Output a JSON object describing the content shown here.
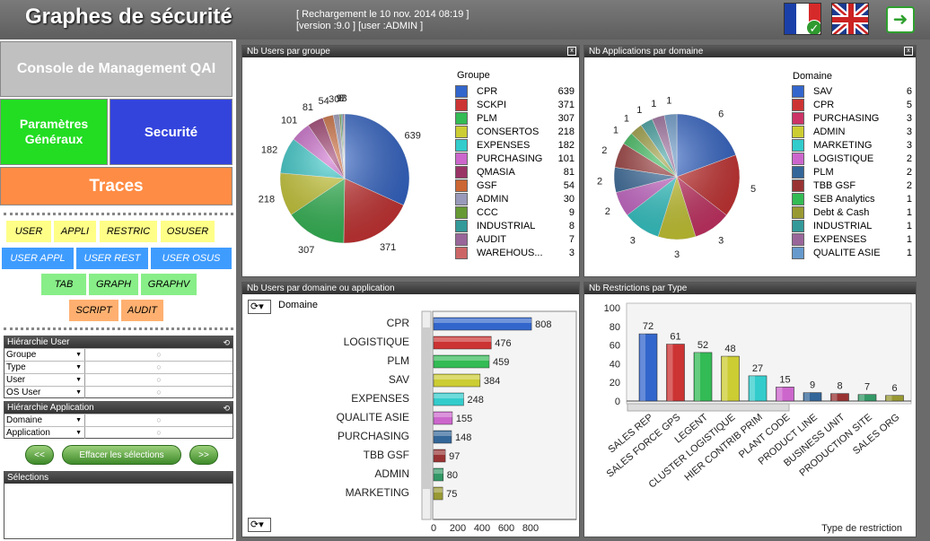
{
  "header": {
    "title": "Graphes de sécurité",
    "reload": "[ Rechargement le 10 nov. 2014 08:19 ]",
    "version": "[version :9.0 ]  [user :ADMIN ]"
  },
  "nav": {
    "console": "Console de Management QAI",
    "params": "Paramètres Généraux",
    "securite": "Securité",
    "traces": "Traces"
  },
  "tabs": {
    "row1": [
      "USER",
      "APPLI",
      "RESTRIC",
      "OSUSER"
    ],
    "row2": [
      "USER APPL",
      "USER REST",
      "USER OSUS"
    ],
    "row3": [
      "TAB",
      "GRAPH",
      "GRAPHV"
    ],
    "row4": [
      "SCRIPT",
      "AUDIT"
    ]
  },
  "hierarchy_user": {
    "title": "Hiérarchie User",
    "items": [
      "Groupe",
      "Type",
      "User",
      "OS User"
    ]
  },
  "hierarchy_app": {
    "title": "Hiérarchie Application",
    "items": [
      "Domaine",
      "Application"
    ]
  },
  "buttons": {
    "prev": "<<",
    "clear": "Effacer les sélections",
    "next": ">>"
  },
  "selections": {
    "title": "Sélections"
  },
  "colors": {
    "palette": [
      "#3366cc",
      "#cc3333",
      "#33bb55",
      "#cccc33",
      "#33cccc",
      "#cc66cc",
      "#993366",
      "#cc6633",
      "#9999bb",
      "#669933",
      "#339999",
      "#996699",
      "#cc6666"
    ]
  },
  "chart_data": [
    {
      "title": "Nb Users par groupe",
      "type": "pie",
      "legend_title": "Groupe",
      "categories": [
        "CPR",
        "SCKPI",
        "PLM",
        "CONSERTOS",
        "EXPENSES",
        "PURCHASING",
        "QMASIA",
        "GSF",
        "ADMIN",
        "CCC",
        "INDUSTRIAL",
        "AUDIT",
        "WAREHOUS..."
      ],
      "values": [
        639,
        371,
        307,
        218,
        182,
        101,
        81,
        54,
        30,
        9,
        8,
        7,
        3
      ],
      "colors": [
        "#3366cc",
        "#cc3333",
        "#33bb55",
        "#cccc33",
        "#33cccc",
        "#cc66cc",
        "#993366",
        "#cc6633",
        "#9999bb",
        "#669933",
        "#339999",
        "#996699",
        "#cc6666"
      ]
    },
    {
      "title": "Nb Applications par domaine",
      "type": "pie",
      "legend_title": "Domaine",
      "categories": [
        "SAV",
        "CPR",
        "PURCHASING",
        "ADMIN",
        "MARKETING",
        "LOGISTIQUE",
        "PLM",
        "TBB GSF",
        "SEB Analytics",
        "Debt & Cash",
        "INDUSTRIAL",
        "EXPENSES",
        "QUALITE ASIE"
      ],
      "values": [
        6,
        5,
        3,
        3,
        3,
        2,
        2,
        2,
        1,
        1,
        1,
        1,
        1
      ],
      "colors": [
        "#3366cc",
        "#cc3333",
        "#cc3366",
        "#cccc33",
        "#33cccc",
        "#cc66cc",
        "#336699",
        "#993333",
        "#33bb55",
        "#999933",
        "#339999",
        "#996699",
        "#6699cc"
      ]
    },
    {
      "title": "Nb Users par domaine ou application",
      "type": "bar",
      "orientation": "horizontal",
      "dimension_label": "Domaine",
      "categories": [
        "CPR",
        "LOGISTIQUE",
        "PLM",
        "SAV",
        "EXPENSES",
        "QUALITE ASIE",
        "PURCHASING",
        "TBB GSF",
        "ADMIN",
        "MARKETING"
      ],
      "values": [
        808,
        476,
        459,
        384,
        248,
        155,
        148,
        97,
        80,
        75
      ],
      "colors": [
        "#3366cc",
        "#cc3333",
        "#33bb55",
        "#cccc33",
        "#33cccc",
        "#cc66cc",
        "#336699",
        "#993333",
        "#339966",
        "#999933"
      ],
      "xticks": [
        0,
        200,
        400,
        600,
        800
      ],
      "xlim": [
        0,
        900
      ]
    },
    {
      "title": "Nb Restrictions par Type",
      "type": "bar",
      "orientation": "vertical",
      "xlabel": "Type de restriction",
      "categories": [
        "SALES REP",
        "SALES FORCE GPS",
        "LEGENT",
        "CLUSTER LOGISTIQUE",
        "HIER CONTRIB PRIM",
        "PLANT CODE",
        "PRODUCT LINE",
        "BUSINESS UNIT",
        "PRODUCTION SITE",
        "SALES ORG"
      ],
      "values": [
        72,
        61,
        52,
        48,
        27,
        15,
        9,
        8,
        7,
        6
      ],
      "colors": [
        "#3366cc",
        "#cc3333",
        "#33bb55",
        "#cccc33",
        "#33cccc",
        "#cc66cc",
        "#336699",
        "#993333",
        "#339966",
        "#999933"
      ],
      "yticks": [
        0,
        20,
        40,
        60,
        80,
        100
      ],
      "ylim": [
        0,
        100
      ]
    }
  ]
}
